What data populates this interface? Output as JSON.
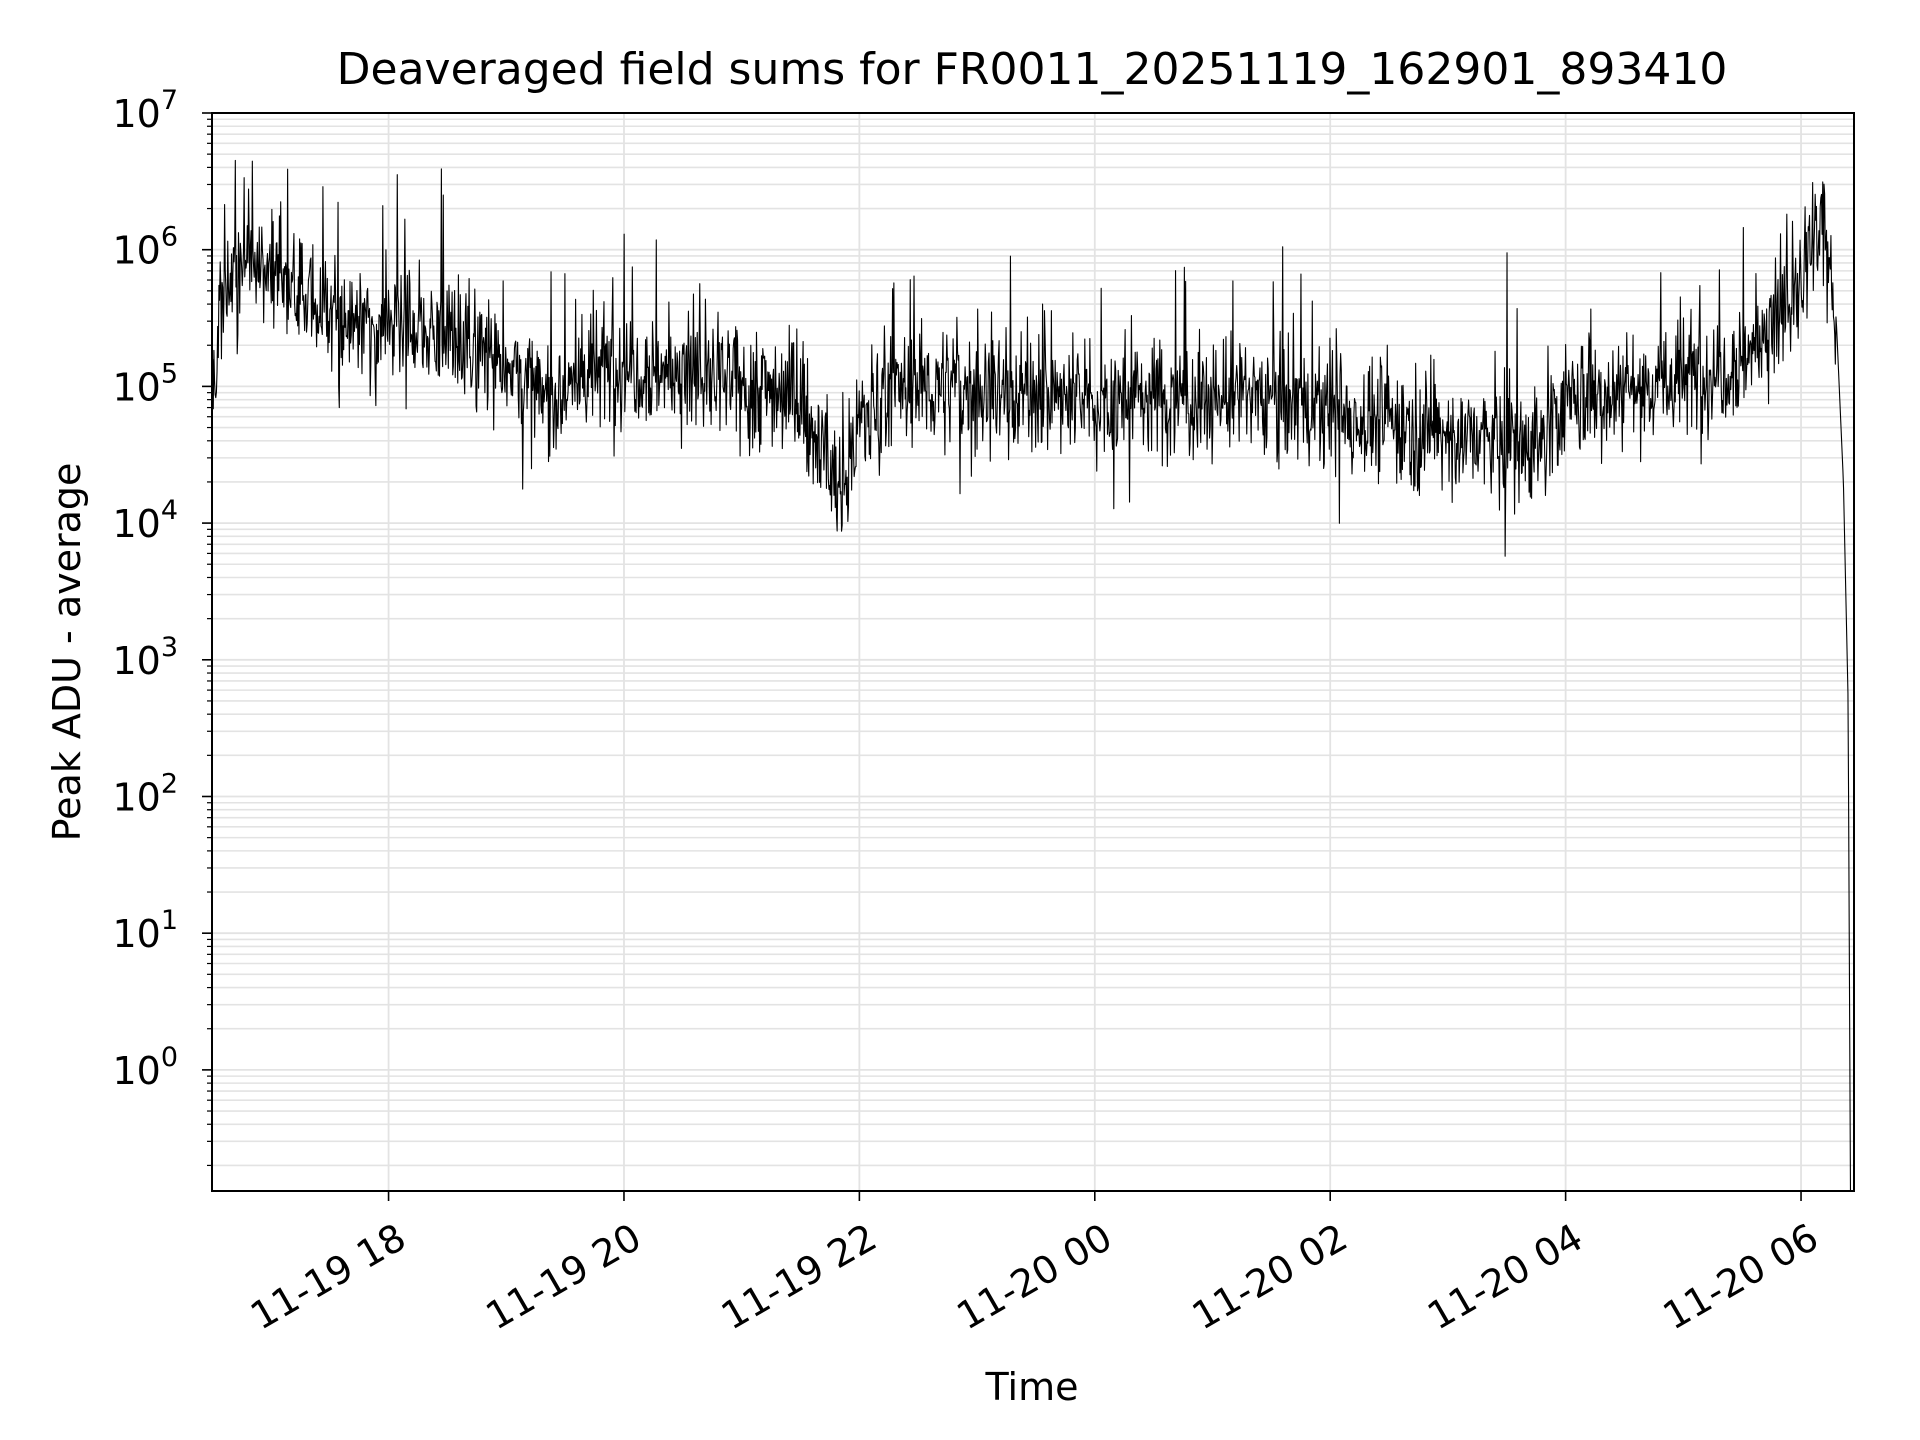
{
  "chart_data": {
    "type": "line",
    "title": "Deaveraged field sums for FR0011_20251119_162901_893410",
    "xlabel": "Time",
    "ylabel": "Peak ADU - average",
    "xscale": "time (hours)",
    "yscale": "log",
    "xlim_hours": [
      16.5,
      30.45
    ],
    "ylim": [
      0.13,
      10000000
    ],
    "x_ticks": [
      {
        "hours": 18,
        "label": "11-19 18"
      },
      {
        "hours": 20,
        "label": "11-19 20"
      },
      {
        "hours": 22,
        "label": "11-19 22"
      },
      {
        "hours": 24,
        "label": "11-20 00"
      },
      {
        "hours": 26,
        "label": "11-20 02"
      },
      {
        "hours": 28,
        "label": "11-20 04"
      },
      {
        "hours": 30,
        "label": "11-20 06"
      }
    ],
    "y_ticks": [
      {
        "value": 1,
        "base": "10",
        "exp": "0"
      },
      {
        "value": 10,
        "base": "10",
        "exp": "1"
      },
      {
        "value": 100,
        "base": "10",
        "exp": "2"
      },
      {
        "value": 1000,
        "base": "10",
        "exp": "3"
      },
      {
        "value": 10000,
        "base": "10",
        "exp": "4"
      },
      {
        "value": 100000,
        "base": "10",
        "exp": "5"
      },
      {
        "value": 1000000,
        "base": "10",
        "exp": "6"
      },
      {
        "value": 10000000,
        "base": "10",
        "exp": "7"
      }
    ],
    "grid": true,
    "series": [
      {
        "name": "deaveraged field sum",
        "color": "#000000",
        "trend_hours": [
          16.5,
          16.55,
          16.75,
          17.0,
          17.3,
          17.6,
          18.0,
          18.4,
          18.7,
          19.0,
          19.3,
          19.6,
          20.0,
          20.5,
          21.0,
          21.4,
          21.55,
          21.75,
          21.85,
          21.95,
          22.2,
          22.5,
          23.0,
          23.5,
          24.0,
          24.5,
          25.0,
          25.5,
          26.0,
          26.5,
          27.0,
          27.5,
          27.8,
          28.0,
          28.5,
          29.0,
          29.5,
          29.8,
          30.0,
          30.1,
          30.2,
          30.25,
          30.3,
          30.36,
          30.4,
          30.42
        ],
        "trend_values": [
          60000,
          250000,
          900000,
          650000,
          450000,
          300000,
          280000,
          250000,
          200000,
          160000,
          75000,
          110000,
          150000,
          120000,
          100000,
          95000,
          60000,
          25000,
          15000,
          45000,
          90000,
          100000,
          95000,
          90000,
          75000,
          85000,
          80000,
          90000,
          60000,
          55000,
          45000,
          38000,
          40000,
          75000,
          100000,
          110000,
          160000,
          300000,
          500000,
          1000000,
          1200000,
          700000,
          300000,
          20000,
          500,
          0.13
        ]
      }
    ],
    "notable_peaks": [
      {
        "hours": 16.7,
        "value": 4500000
      },
      {
        "hours": 18.45,
        "value": 3900000
      },
      {
        "hours": 17.95,
        "value": 2100000
      },
      {
        "hours": 20.0,
        "value": 1300000
      },
      {
        "hours": 27.5,
        "value": 950000
      },
      {
        "hours": 30.1,
        "value": 3100000
      }
    ]
  }
}
